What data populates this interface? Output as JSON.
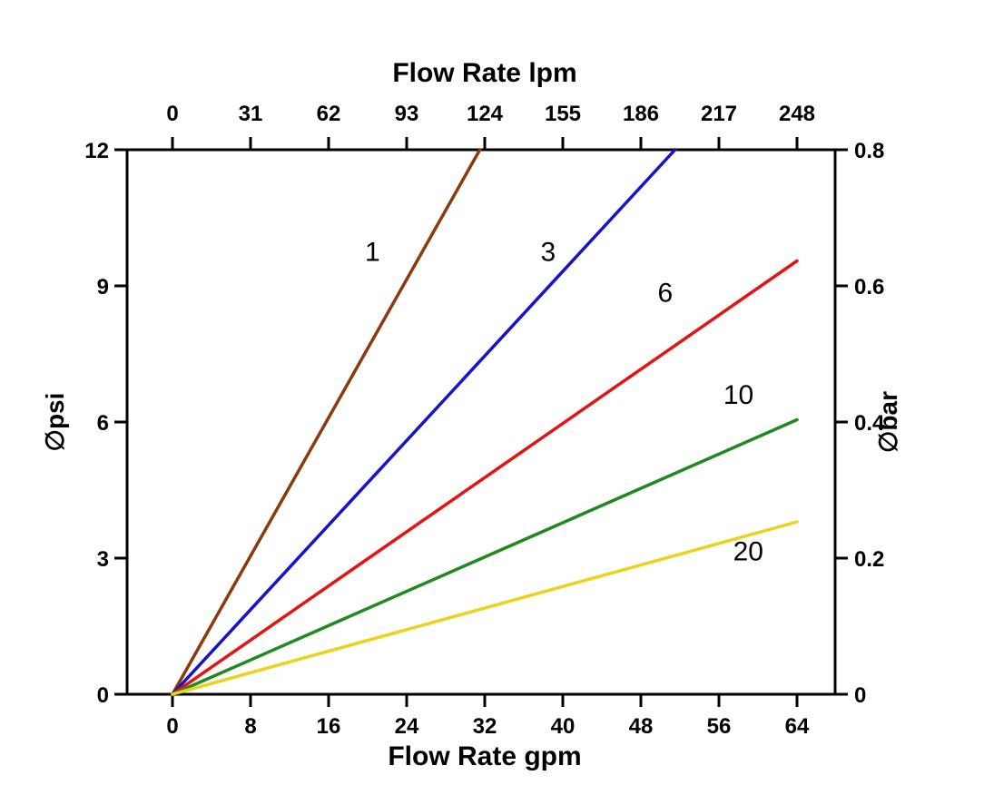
{
  "chart_data": {
    "type": "line",
    "title": "",
    "x_axis_top": {
      "label": "Flow Rate lpm",
      "ticks": [
        0,
        31,
        62,
        93,
        124,
        155,
        186,
        217,
        248
      ],
      "range": [
        0,
        248
      ]
    },
    "x_axis_bottom": {
      "label": "Flow Rate gpm",
      "ticks": [
        0,
        8,
        16,
        24,
        32,
        40,
        48,
        56,
        64
      ],
      "range": [
        0,
        64
      ]
    },
    "y_axis_left": {
      "label": "∅psi",
      "ticks": [
        0,
        3,
        6,
        9,
        12
      ],
      "range": [
        0,
        12
      ]
    },
    "y_axis_right": {
      "label": "∅bar",
      "ticks": [
        0,
        0.2,
        0.4,
        0.6,
        0.8
      ],
      "range": [
        0,
        0.8
      ]
    },
    "grid": false,
    "legend": "inline-labels",
    "series": [
      {
        "name": "1",
        "color": "#8B3A0B",
        "points": [
          [
            0,
            0
          ],
          [
            31.5,
            12
          ]
        ],
        "label_pos": [
          20.5,
          9.55
        ]
      },
      {
        "name": "3",
        "color": "#1414CC",
        "points": [
          [
            0,
            0
          ],
          [
            51.5,
            12
          ]
        ],
        "label_pos": [
          38.5,
          9.55
        ]
      },
      {
        "name": "6",
        "color": "#E41414",
        "points": [
          [
            0,
            0
          ],
          [
            64,
            9.55
          ]
        ],
        "label_pos": [
          50.5,
          8.65
        ]
      },
      {
        "name": "10",
        "color": "#1F8A1F",
        "points": [
          [
            0,
            0
          ],
          [
            64,
            6.05
          ]
        ],
        "label_pos": [
          58.0,
          6.4
        ]
      },
      {
        "name": "20",
        "color": "#EDD21B",
        "points": [
          [
            0,
            0
          ],
          [
            64,
            3.8
          ]
        ],
        "label_pos": [
          59.0,
          2.95
        ]
      }
    ],
    "colors": {
      "axis": "#000000",
      "background": "#ffffff",
      "text": "#000000"
    }
  }
}
